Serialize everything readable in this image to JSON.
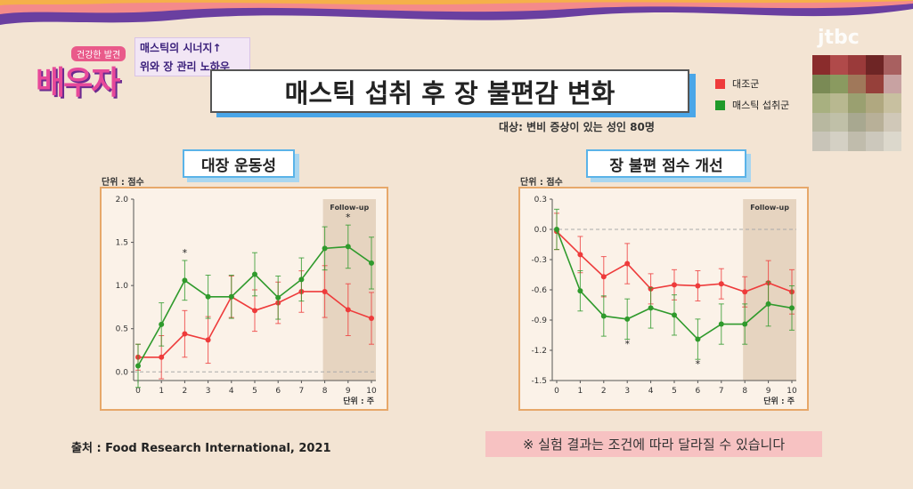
{
  "show": {
    "logo_tag": "건강한 발견",
    "logo_main": "배우자",
    "caption_line1": "매스틱의 시너지↑",
    "caption_line2": "위와 장 관리 노하우",
    "broadcaster": "jtbc"
  },
  "title": "매스틱 섭취 후 장 불편감 변화",
  "subject": "대상: 변비 증상이 있는 성인 80명",
  "legend": [
    {
      "label": "대조군",
      "color": "#ee3b3b"
    },
    {
      "label": "매스틱 섭취군",
      "color": "#1f9a2a"
    }
  ],
  "source": "출처 : Food Research International, 2021",
  "note": "※ 실험 결과는 조건에 따라 달라질 수 있습니다",
  "colors": {
    "control": "#ee3b3b",
    "mastic": "#2f9a2c",
    "frame": "#e7a86a",
    "followup": "#e2cfb8"
  },
  "chart_data": [
    {
      "type": "line",
      "title": "대장 운동성",
      "ylabel": "단위 : 점수",
      "xlabel": "단위 : 주",
      "x": [
        0,
        1,
        2,
        3,
        4,
        5,
        6,
        7,
        8,
        9,
        10
      ],
      "ylim": [
        -0.1,
        2.0
      ],
      "yticks": [
        0.0,
        0.5,
        1.0,
        1.5,
        2.0
      ],
      "ytick_labels": [
        "0.0",
        "0.5",
        "1.0",
        "1.5",
        "2.0"
      ],
      "followup_label": "Follow-up",
      "followup_start": 8,
      "significance_at": [
        2,
        9
      ],
      "series": [
        {
          "id": "control",
          "values": [
            0.17,
            0.17,
            0.44,
            0.37,
            0.87,
            0.71,
            0.8,
            0.93,
            0.93,
            0.72,
            0.62
          ],
          "err": [
            0.15,
            0.25,
            0.27,
            0.27,
            0.24,
            0.24,
            0.24,
            0.24,
            0.3,
            0.3,
            0.3
          ]
        },
        {
          "id": "mastic",
          "values": [
            0.07,
            0.55,
            1.06,
            0.87,
            0.87,
            1.13,
            0.86,
            1.07,
            1.43,
            1.45,
            1.26
          ],
          "err": [
            0.25,
            0.25,
            0.23,
            0.25,
            0.25,
            0.25,
            0.25,
            0.25,
            0.25,
            0.25,
            0.3
          ]
        }
      ]
    },
    {
      "type": "line",
      "title": "장 불편 점수 개선",
      "ylabel": "단위 : 점수",
      "xlabel": "단위 : 주",
      "x": [
        0,
        1,
        2,
        3,
        4,
        5,
        6,
        7,
        8,
        9,
        10
      ],
      "ylim": [
        -1.5,
        0.3
      ],
      "yticks": [
        0.3,
        0.0,
        -0.3,
        -0.6,
        -0.9,
        -1.2,
        -1.5
      ],
      "ytick_labels": [
        "0.3",
        "0.0",
        "-0.3",
        "-0.6",
        "-0.9",
        "-1.2",
        "-1.5"
      ],
      "followup_label": "Follow-up",
      "followup_start": 8,
      "significance_at": [
        3,
        6
      ],
      "series": [
        {
          "id": "control",
          "values": [
            -0.02,
            -0.25,
            -0.47,
            -0.34,
            -0.59,
            -0.55,
            -0.56,
            -0.54,
            -0.62,
            -0.53,
            -0.62
          ],
          "err": [
            0.18,
            0.18,
            0.2,
            0.2,
            0.15,
            0.15,
            0.15,
            0.15,
            0.15,
            0.22,
            0.22
          ]
        },
        {
          "id": "mastic",
          "values": [
            0.0,
            -0.61,
            -0.86,
            -0.89,
            -0.78,
            -0.85,
            -1.09,
            -0.94,
            -0.94,
            -0.74,
            -0.78
          ],
          "err": [
            0.2,
            0.2,
            0.2,
            0.2,
            0.2,
            0.2,
            0.2,
            0.2,
            0.2,
            0.22,
            0.22
          ]
        }
      ]
    }
  ]
}
